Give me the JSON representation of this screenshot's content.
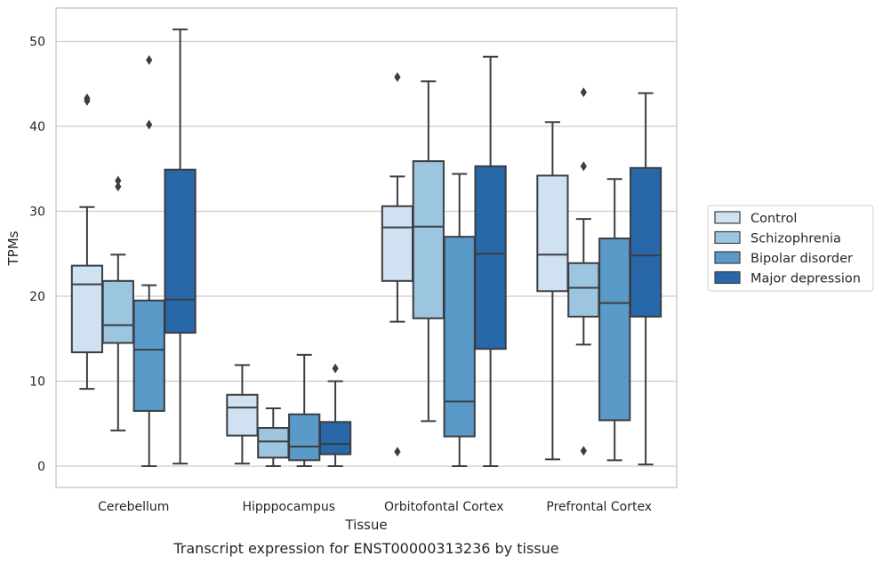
{
  "chart_data": {
    "type": "box",
    "title": "",
    "caption": "Transcript expression for ENST00000313236 by tissue",
    "xlabel": "Tissue",
    "ylabel": "TPMs",
    "ylim": [
      -2.5,
      54
    ],
    "yticks": [
      0,
      10,
      20,
      30,
      40,
      50
    ],
    "categories": [
      "Cerebellum",
      "Hipppocampus",
      "Orbitofontal Cortex",
      "Prefrontal Cortex"
    ],
    "grid": true,
    "legend_position": "right",
    "series": [
      {
        "name": "Control",
        "color": "#d0e1f2",
        "boxes": [
          {
            "whislo": 9.1,
            "q1": 13.4,
            "med": 21.4,
            "q3": 23.6,
            "whishi": 30.5,
            "fliers": [
              43.0,
              43.3
            ]
          },
          {
            "whislo": 0.3,
            "q1": 3.6,
            "med": 6.9,
            "q3": 8.4,
            "whishi": 11.9,
            "fliers": []
          },
          {
            "whislo": 17.0,
            "q1": 21.8,
            "med": 28.1,
            "q3": 30.6,
            "whishi": 34.1,
            "fliers": [
              1.7,
              45.8
            ]
          },
          {
            "whislo": 0.8,
            "q1": 20.6,
            "med": 24.9,
            "q3": 34.2,
            "whishi": 40.5,
            "fliers": []
          }
        ]
      },
      {
        "name": "Schizophrenia",
        "color": "#9cc5df",
        "boxes": [
          {
            "whislo": 4.2,
            "q1": 14.5,
            "med": 16.6,
            "q3": 21.8,
            "whishi": 24.9,
            "fliers": [
              32.9,
              33.6
            ]
          },
          {
            "whislo": 0.0,
            "q1": 1.0,
            "med": 2.9,
            "q3": 4.5,
            "whishi": 6.8,
            "fliers": []
          },
          {
            "whislo": 5.3,
            "q1": 17.4,
            "med": 28.2,
            "q3": 35.9,
            "whishi": 45.3,
            "fliers": []
          },
          {
            "whislo": 14.3,
            "q1": 17.6,
            "med": 21.0,
            "q3": 23.9,
            "whishi": 29.1,
            "fliers": [
              1.8,
              35.3,
              44.0
            ]
          }
        ]
      },
      {
        "name": "Bipolar disorder",
        "color": "#5a9ac9",
        "boxes": [
          {
            "whislo": 0.0,
            "q1": 6.5,
            "med": 13.7,
            "q3": 19.5,
            "whishi": 21.3,
            "fliers": [
              40.2,
              47.8
            ]
          },
          {
            "whislo": 0.0,
            "q1": 0.7,
            "med": 2.3,
            "q3": 6.1,
            "whishi": 13.1,
            "fliers": []
          },
          {
            "whislo": 0.0,
            "q1": 3.5,
            "med": 7.6,
            "q3": 27.0,
            "whishi": 34.4,
            "fliers": []
          },
          {
            "whislo": 0.7,
            "q1": 5.4,
            "med": 19.2,
            "q3": 26.8,
            "whishi": 33.8,
            "fliers": []
          }
        ]
      },
      {
        "name": "Major depression",
        "color": "#2867a8",
        "boxes": [
          {
            "whislo": 0.3,
            "q1": 15.7,
            "med": 19.6,
            "q3": 34.9,
            "whishi": 51.4,
            "fliers": []
          },
          {
            "whislo": 0.0,
            "q1": 1.4,
            "med": 2.6,
            "q3": 5.2,
            "whishi": 10.0,
            "fliers": [
              11.5
            ]
          },
          {
            "whislo": 0.0,
            "q1": 13.8,
            "med": 25.0,
            "q3": 35.3,
            "whishi": 48.2,
            "fliers": []
          },
          {
            "whislo": 0.2,
            "q1": 17.6,
            "med": 24.8,
            "q3": 35.1,
            "whishi": 43.9,
            "fliers": []
          }
        ]
      }
    ]
  },
  "colors": {
    "edge": "#3b3d42",
    "grid": "#cccccc",
    "frame": "#cccccc"
  }
}
